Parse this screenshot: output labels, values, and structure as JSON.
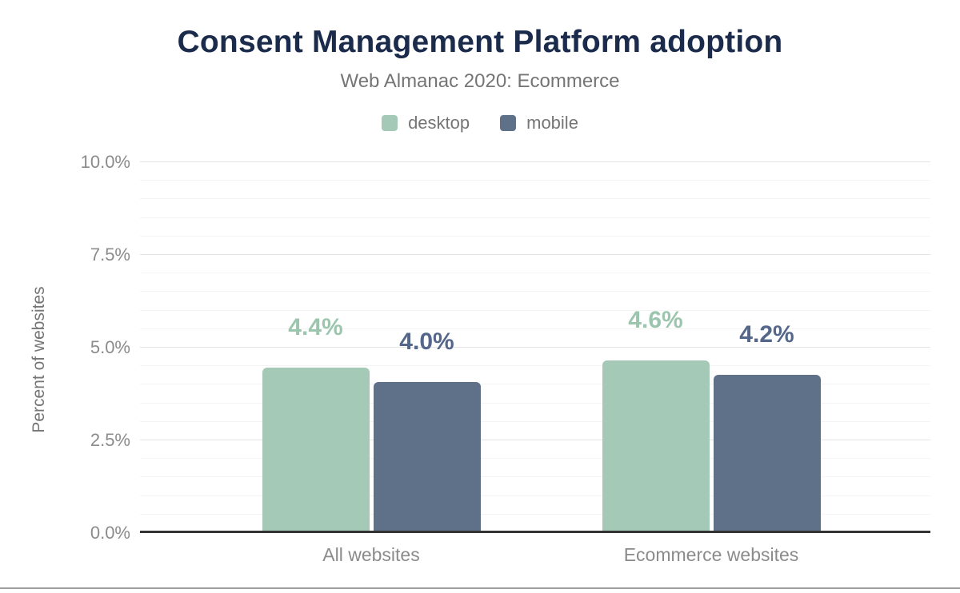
{
  "chart_data": {
    "type": "bar",
    "title": "Consent Management Platform adoption",
    "subtitle": "Web Almanac 2020: Ecommerce",
    "ylabel": "Percent of websites",
    "categories": [
      "All websites",
      "Ecommerce websites"
    ],
    "series": [
      {
        "name": "desktop",
        "color": "#a4c9b6",
        "label_color": "#9cc5ae",
        "values": [
          4.4,
          4.6
        ],
        "labels": [
          "4.4%",
          "4.6%"
        ]
      },
      {
        "name": "mobile",
        "color": "#5f7089",
        "label_color": "#54678a",
        "values": [
          4.0,
          4.2
        ],
        "labels": [
          "4.0%",
          "4.2%"
        ]
      }
    ],
    "ylim": [
      0,
      10
    ],
    "yticks": [
      {
        "value": 0,
        "label": "0.0%"
      },
      {
        "value": 2.5,
        "label": "2.5%"
      },
      {
        "value": 5,
        "label": "5.0%"
      },
      {
        "value": 7.5,
        "label": "7.5%"
      },
      {
        "value": 10,
        "label": "10.0%"
      }
    ],
    "minor_tick_step": 0.5,
    "grid": "horizontal",
    "legend_position": "top",
    "axis_color": "#333333",
    "title_color": "#1b2b4b",
    "text_color": "#757575"
  }
}
